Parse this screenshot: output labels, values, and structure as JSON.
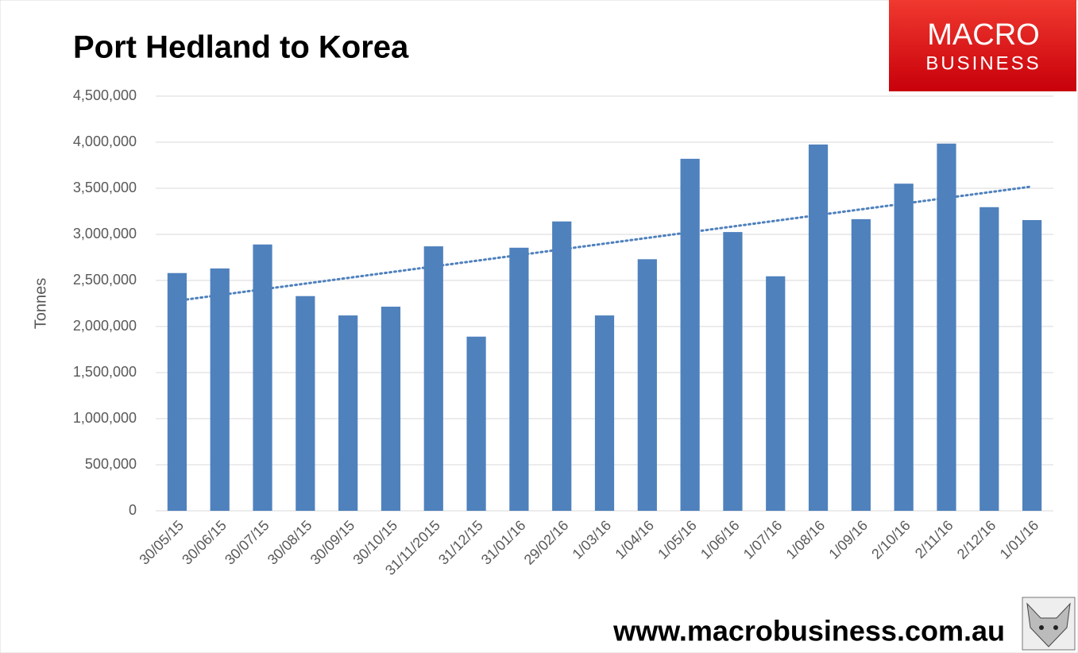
{
  "chart_data": {
    "type": "bar",
    "title": "Port Hedland to Korea",
    "y_label": "Tonnes",
    "categories": [
      "30/05/15",
      "30/06/15",
      "30/07/15",
      "30/08/15",
      "30/09/15",
      "30/10/15",
      "31/11/2015",
      "31/12/15",
      "31/01/16",
      "29/02/16",
      "1/03/16",
      "1/04/16",
      "1/05/16",
      "1/06/16",
      "1/07/16",
      "1/08/16",
      "1/09/16",
      "2/10/16",
      "2/11/16",
      "2/12/16",
      "1/01/16"
    ],
    "values": [
      2580000,
      2630000,
      2890000,
      2330000,
      2120000,
      2215000,
      2870000,
      1890000,
      2855000,
      3140000,
      2120000,
      2730000,
      3820000,
      3025000,
      2545000,
      3975000,
      3165000,
      3550000,
      3985000,
      3295000,
      3155000
    ],
    "color": "#4f81bd",
    "ylim": [
      0,
      4500000
    ],
    "yticks": [
      0,
      {
        "value": 500000,
        "label": "500,000"
      },
      {
        "value": 1000000,
        "label": "1,000,000"
      },
      {
        "value": 1500000,
        "label": "1,500,000"
      },
      {
        "value": 2000000,
        "label": "2,000,000"
      },
      {
        "value": 2500000,
        "label": "2,500,000"
      },
      {
        "value": 3000000,
        "label": "3,000,000"
      },
      {
        "value": 3500000,
        "label": "3,500,000"
      },
      {
        "value": 4000000,
        "label": "4,000,000"
      },
      {
        "value": 4500000,
        "label": "4,500,000"
      }
    ],
    "grid": true,
    "trendline": true,
    "trendline_color": "#4f81bd"
  },
  "logo": {
    "line1": "MACRO",
    "line2": "BUSINESS"
  },
  "footer": "www.macrobusiness.com.au"
}
